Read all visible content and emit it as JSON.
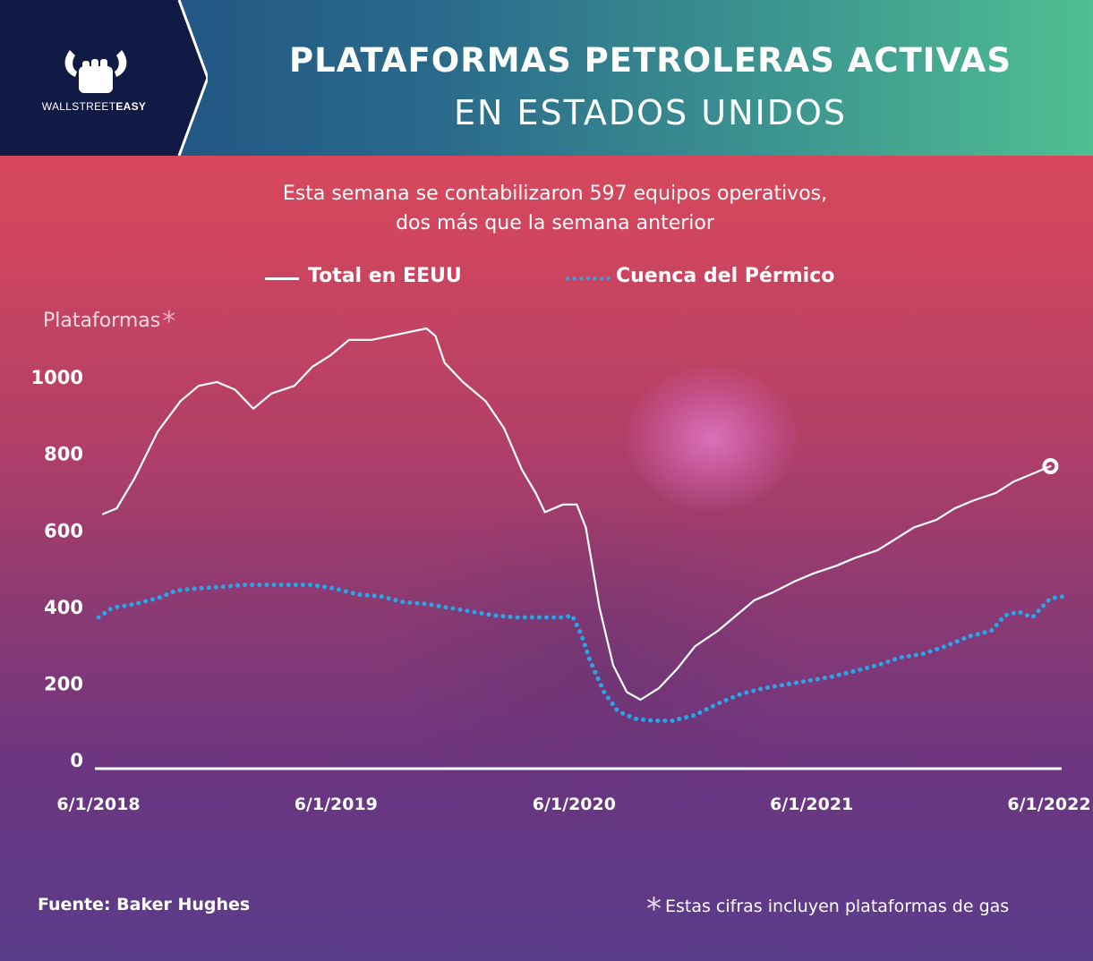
{
  "header": {
    "brand_prefix": "WALLSTREET",
    "brand_suffix": "EASY",
    "title_line1": "PLATAFORMAS PETROLERAS ACTIVAS",
    "title_line2": "EN ESTADOS UNIDOS"
  },
  "subtitle": {
    "line1": "Esta semana se contabilizaron 597 equipos operativos,",
    "line2": "dos más que la semana anterior"
  },
  "legend": {
    "total_label": "Total en EEUU",
    "permian_label": "Cuenca del Pérmico"
  },
  "y_axis_title": "Plataformas",
  "asterisk": "*",
  "source": "Fuente: Baker Hughes",
  "footnote": "Estas cifras incluyen plataformas de gas",
  "colors": {
    "total_series": "#ffffff",
    "permian_series": "#2aa6e8",
    "header_left": "#1d4a7d",
    "header_right": "#4fbf92"
  },
  "chart_data": {
    "type": "line",
    "ylabel": "Plataformas",
    "ylim": [
      0,
      1150
    ],
    "yticks": [
      0,
      200,
      400,
      600,
      800,
      1000
    ],
    "xticks": [
      "6/1/2018",
      "6/1/2019",
      "6/1/2020",
      "6/1/2021",
      "6/1/2022"
    ],
    "xlim": [
      "2018-06-01",
      "2022-06-01"
    ],
    "grid": false,
    "legend_position": "top",
    "series": [
      {
        "name": "Total en EEUU",
        "style": "solid",
        "points": [
          [
            "2018-06-08",
            665
          ],
          [
            "2018-06-29",
            680
          ],
          [
            "2018-07-27",
            760
          ],
          [
            "2018-08-31",
            880
          ],
          [
            "2018-10-05",
            960
          ],
          [
            "2018-11-02",
            1000
          ],
          [
            "2018-11-30",
            1010
          ],
          [
            "2018-12-28",
            990
          ],
          [
            "2019-01-25",
            940
          ],
          [
            "2019-02-22",
            980
          ],
          [
            "2019-03-29",
            1000
          ],
          [
            "2019-04-26",
            1050
          ],
          [
            "2019-05-24",
            1080
          ],
          [
            "2019-06-21",
            1120
          ],
          [
            "2019-07-26",
            1120
          ],
          [
            "2019-08-23",
            1130
          ],
          [
            "2019-09-20",
            1140
          ],
          [
            "2019-10-18",
            1150
          ],
          [
            "2019-11-01",
            1130
          ],
          [
            "2019-11-15",
            1060
          ],
          [
            "2019-12-13",
            1010
          ],
          [
            "2020-01-17",
            960
          ],
          [
            "2020-02-14",
            890
          ],
          [
            "2020-03-13",
            780
          ],
          [
            "2020-04-03",
            720
          ],
          [
            "2020-04-17",
            670
          ],
          [
            "2020-05-15",
            690
          ],
          [
            "2020-06-05",
            690
          ],
          [
            "2020-06-19",
            630
          ],
          [
            "2020-07-10",
            420
          ],
          [
            "2020-07-31",
            270
          ],
          [
            "2020-08-21",
            200
          ],
          [
            "2020-09-11",
            180
          ],
          [
            "2020-10-09",
            210
          ],
          [
            "2020-11-06",
            260
          ],
          [
            "2020-12-04",
            320
          ],
          [
            "2021-01-08",
            360
          ],
          [
            "2021-02-05",
            400
          ],
          [
            "2021-03-05",
            440
          ],
          [
            "2021-04-02",
            460
          ],
          [
            "2021-05-07",
            490
          ],
          [
            "2021-06-04",
            510
          ],
          [
            "2021-07-09",
            530
          ],
          [
            "2021-08-06",
            550
          ],
          [
            "2021-09-10",
            570
          ],
          [
            "2021-10-08",
            600
          ],
          [
            "2021-11-05",
            630
          ],
          [
            "2021-12-10",
            650
          ],
          [
            "2022-01-07",
            680
          ],
          [
            "2022-02-04",
            700
          ],
          [
            "2022-03-11",
            720
          ],
          [
            "2022-04-08",
            750
          ],
          [
            "2022-05-06",
            770
          ],
          [
            "2022-06-03",
            790
          ]
        ]
      },
      {
        "name": "Cuenca del Pérmico",
        "style": "dotted",
        "points": [
          [
            "2018-06-01",
            395
          ],
          [
            "2018-06-22",
            420
          ],
          [
            "2018-07-27",
            430
          ],
          [
            "2018-08-31",
            445
          ],
          [
            "2018-09-28",
            465
          ],
          [
            "2018-10-26",
            470
          ],
          [
            "2018-12-07",
            475
          ],
          [
            "2019-01-11",
            480
          ],
          [
            "2019-02-15",
            480
          ],
          [
            "2019-03-22",
            480
          ],
          [
            "2019-04-26",
            480
          ],
          [
            "2019-05-31",
            470
          ],
          [
            "2019-07-05",
            455
          ],
          [
            "2019-08-09",
            450
          ],
          [
            "2019-09-13",
            435
          ],
          [
            "2019-10-18",
            430
          ],
          [
            "2019-11-22",
            420
          ],
          [
            "2019-12-27",
            410
          ],
          [
            "2020-01-31",
            400
          ],
          [
            "2020-03-06",
            395
          ],
          [
            "2020-04-10",
            395
          ],
          [
            "2020-05-15",
            395
          ],
          [
            "2020-05-29",
            400
          ],
          [
            "2020-06-12",
            350
          ],
          [
            "2020-06-26",
            280
          ],
          [
            "2020-07-17",
            200
          ],
          [
            "2020-08-07",
            150
          ],
          [
            "2020-09-04",
            130
          ],
          [
            "2020-10-02",
            125
          ],
          [
            "2020-10-30",
            125
          ],
          [
            "2020-12-04",
            140
          ],
          [
            "2021-01-08",
            170
          ],
          [
            "2021-02-12",
            195
          ],
          [
            "2021-03-19",
            210
          ],
          [
            "2021-04-23",
            220
          ],
          [
            "2021-05-28",
            230
          ],
          [
            "2021-07-02",
            240
          ],
          [
            "2021-08-06",
            255
          ],
          [
            "2021-09-10",
            270
          ],
          [
            "2021-10-15",
            290
          ],
          [
            "2021-11-19",
            300
          ],
          [
            "2021-12-24",
            320
          ],
          [
            "2022-01-28",
            345
          ],
          [
            "2022-03-04",
            360
          ],
          [
            "2022-03-25",
            400
          ],
          [
            "2022-04-15",
            410
          ],
          [
            "2022-05-06",
            395
          ],
          [
            "2022-05-20",
            420
          ],
          [
            "2022-06-03",
            445
          ],
          [
            "2022-06-24",
            450
          ]
        ]
      }
    ],
    "end_marker": {
      "series": "Total en EEUU",
      "date": "2022-06-03",
      "value": 790
    }
  }
}
